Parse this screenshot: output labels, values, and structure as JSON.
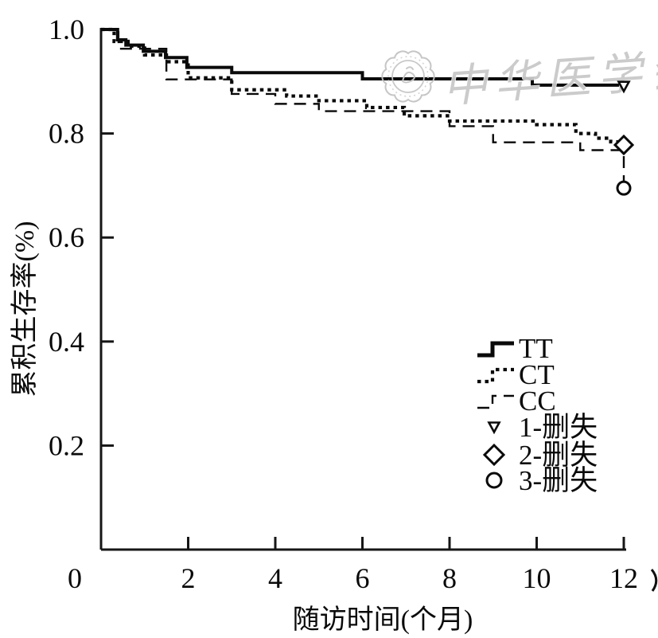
{
  "figure": {
    "kind": "kaplan-meier-survival-plot",
    "background": "#ffffff",
    "line_color": "#0a0a0a"
  },
  "watermark": {
    "text": "中华医学会",
    "logo": "cma-seal-logo",
    "color": "#c9c9c9"
  },
  "edge_fragment": ")",
  "chart_data": {
    "type": "line",
    "subtype": "step-survival",
    "title": "",
    "xlabel": "随访时间(个月)",
    "ylabel": "累积生存率(%)",
    "xlim": [
      0,
      12
    ],
    "ylim": [
      0,
      1.0
    ],
    "xticks": [
      0,
      2,
      4,
      6,
      8,
      10,
      12
    ],
    "yticks": [
      1.0,
      0.8,
      0.6,
      0.4,
      0.2
    ],
    "grid": false,
    "legend_position": "right-middle",
    "series": [
      {
        "name": "TT",
        "style": "solid",
        "points": [
          [
            0,
            1.0
          ],
          [
            0.38,
            0.98
          ],
          [
            0.57,
            0.97
          ],
          [
            0.97,
            0.958
          ],
          [
            1.48,
            0.946
          ],
          [
            1.97,
            0.927
          ],
          [
            3.0,
            0.917
          ],
          [
            6.0,
            0.905
          ],
          [
            9.9,
            0.893
          ],
          [
            12,
            0.891
          ]
        ]
      },
      {
        "name": "CT",
        "style": "dotted",
        "points": [
          [
            0,
            1.0
          ],
          [
            0.3,
            0.977
          ],
          [
            0.62,
            0.968
          ],
          [
            1.0,
            0.951
          ],
          [
            1.5,
            0.938
          ],
          [
            2.0,
            0.907
          ],
          [
            3.0,
            0.884
          ],
          [
            4.26,
            0.872
          ],
          [
            5.0,
            0.863
          ],
          [
            6.1,
            0.85
          ],
          [
            6.96,
            0.834
          ],
          [
            8.0,
            0.824
          ],
          [
            10.0,
            0.817
          ],
          [
            10.9,
            0.8
          ],
          [
            11.35,
            0.791
          ],
          [
            11.7,
            0.784
          ],
          [
            12,
            0.778
          ]
        ]
      },
      {
        "name": "CC",
        "style": "dashed",
        "points": [
          [
            0,
            1.0
          ],
          [
            0.4,
            0.963
          ],
          [
            1.5,
            0.904
          ],
          [
            3.0,
            0.876
          ],
          [
            4.0,
            0.857
          ],
          [
            5.0,
            0.843
          ],
          [
            8.0,
            0.814
          ],
          [
            9.0,
            0.783
          ],
          [
            11.0,
            0.768
          ],
          [
            12,
            0.695
          ]
        ]
      }
    ],
    "censor_markers": [
      {
        "series": "TT",
        "symbol": "triangle-down",
        "x": 12,
        "y": 0.891
      },
      {
        "series": "CT",
        "symbol": "diamond",
        "x": 12,
        "y": 0.778
      },
      {
        "series": "CC",
        "symbol": "circle",
        "x": 12,
        "y": 0.695
      }
    ],
    "legend": [
      {
        "label": "TT",
        "symbol": "step-line",
        "style": "solid"
      },
      {
        "label": "CT",
        "symbol": "step-line",
        "style": "dotted"
      },
      {
        "label": "CC",
        "symbol": "step-line",
        "style": "dashed"
      },
      {
        "label": "1-删失",
        "symbol": "triangle-down"
      },
      {
        "label": "2-删失",
        "symbol": "diamond"
      },
      {
        "label": "3-删失",
        "symbol": "circle"
      }
    ]
  }
}
